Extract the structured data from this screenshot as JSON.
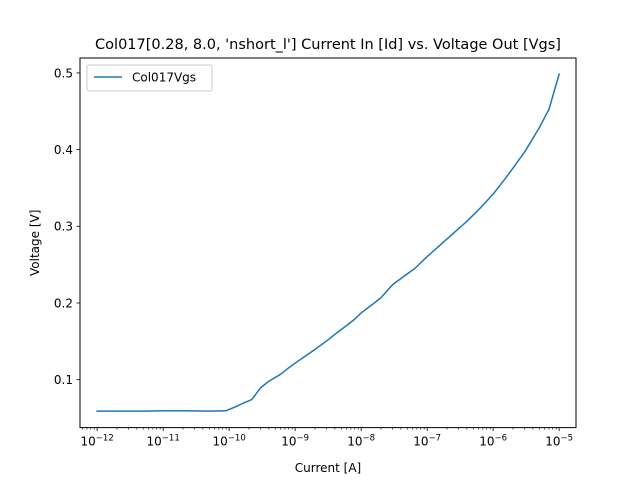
{
  "chart_data": {
    "type": "line",
    "title": "Col017[0.28, 8.0, 'nshort_l'] Current In [Id] vs. Voltage Out [Vgs]",
    "xlabel": "Current [A]",
    "ylabel": "Voltage [V]",
    "xscale": "log",
    "xlim": [
      5.5e-13,
      1.8e-05
    ],
    "ylim": [
      0.0375,
      0.5195
    ],
    "xticks": [
      {
        "value": 1e-12,
        "mantissa": "10",
        "exp": "−12"
      },
      {
        "value": 1e-11,
        "mantissa": "10",
        "exp": "−11"
      },
      {
        "value": 1e-10,
        "mantissa": "10",
        "exp": "−10"
      },
      {
        "value": 1e-09,
        "mantissa": "10",
        "exp": "−9"
      },
      {
        "value": 1e-08,
        "mantissa": "10",
        "exp": "−8"
      },
      {
        "value": 1e-07,
        "mantissa": "10",
        "exp": "−7"
      },
      {
        "value": 1e-06,
        "mantissa": "10",
        "exp": "−6"
      },
      {
        "value": 1e-05,
        "mantissa": "10",
        "exp": "−5"
      }
    ],
    "yticks": [
      {
        "value": 0.1,
        "label": "0.1"
      },
      {
        "value": 0.2,
        "label": "0.2"
      },
      {
        "value": 0.3,
        "label": "0.3"
      },
      {
        "value": 0.4,
        "label": "0.4"
      },
      {
        "value": 0.5,
        "label": "0.5"
      }
    ],
    "grid": false,
    "legend_position": "upper-left",
    "series": [
      {
        "name": "Col017Vgs",
        "color": "#1f77b4",
        "x": [
          1e-12,
          2e-12,
          5e-12,
          1e-11,
          2e-11,
          5e-11,
          9e-11,
          1.2e-10,
          1.6e-10,
          2.2e-10,
          3e-10,
          4e-10,
          6e-10,
          8e-10,
          1e-09,
          1.5e-09,
          2e-09,
          3e-09,
          4.5e-09,
          6e-09,
          8e-09,
          1e-08,
          1.5e-08,
          2e-08,
          3e-08,
          5e-08,
          6.5e-08,
          1e-07,
          2e-07,
          4e-07,
          6.5e-07,
          1e-06,
          1.5e-06,
          2e-06,
          3e-06,
          5e-06,
          7e-06,
          1e-05
        ],
        "y": [
          0.059,
          0.059,
          0.059,
          0.0595,
          0.0595,
          0.059,
          0.0595,
          0.064,
          0.069,
          0.074,
          0.0895,
          0.098,
          0.107,
          0.1155,
          0.1215,
          0.132,
          0.1395,
          0.1505,
          0.1625,
          0.1705,
          0.179,
          0.187,
          0.1985,
          0.207,
          0.224,
          0.238,
          0.245,
          0.2605,
          0.2835,
          0.3065,
          0.3245,
          0.342,
          0.3615,
          0.376,
          0.397,
          0.4285,
          0.4525,
          0.4985
        ]
      }
    ]
  }
}
